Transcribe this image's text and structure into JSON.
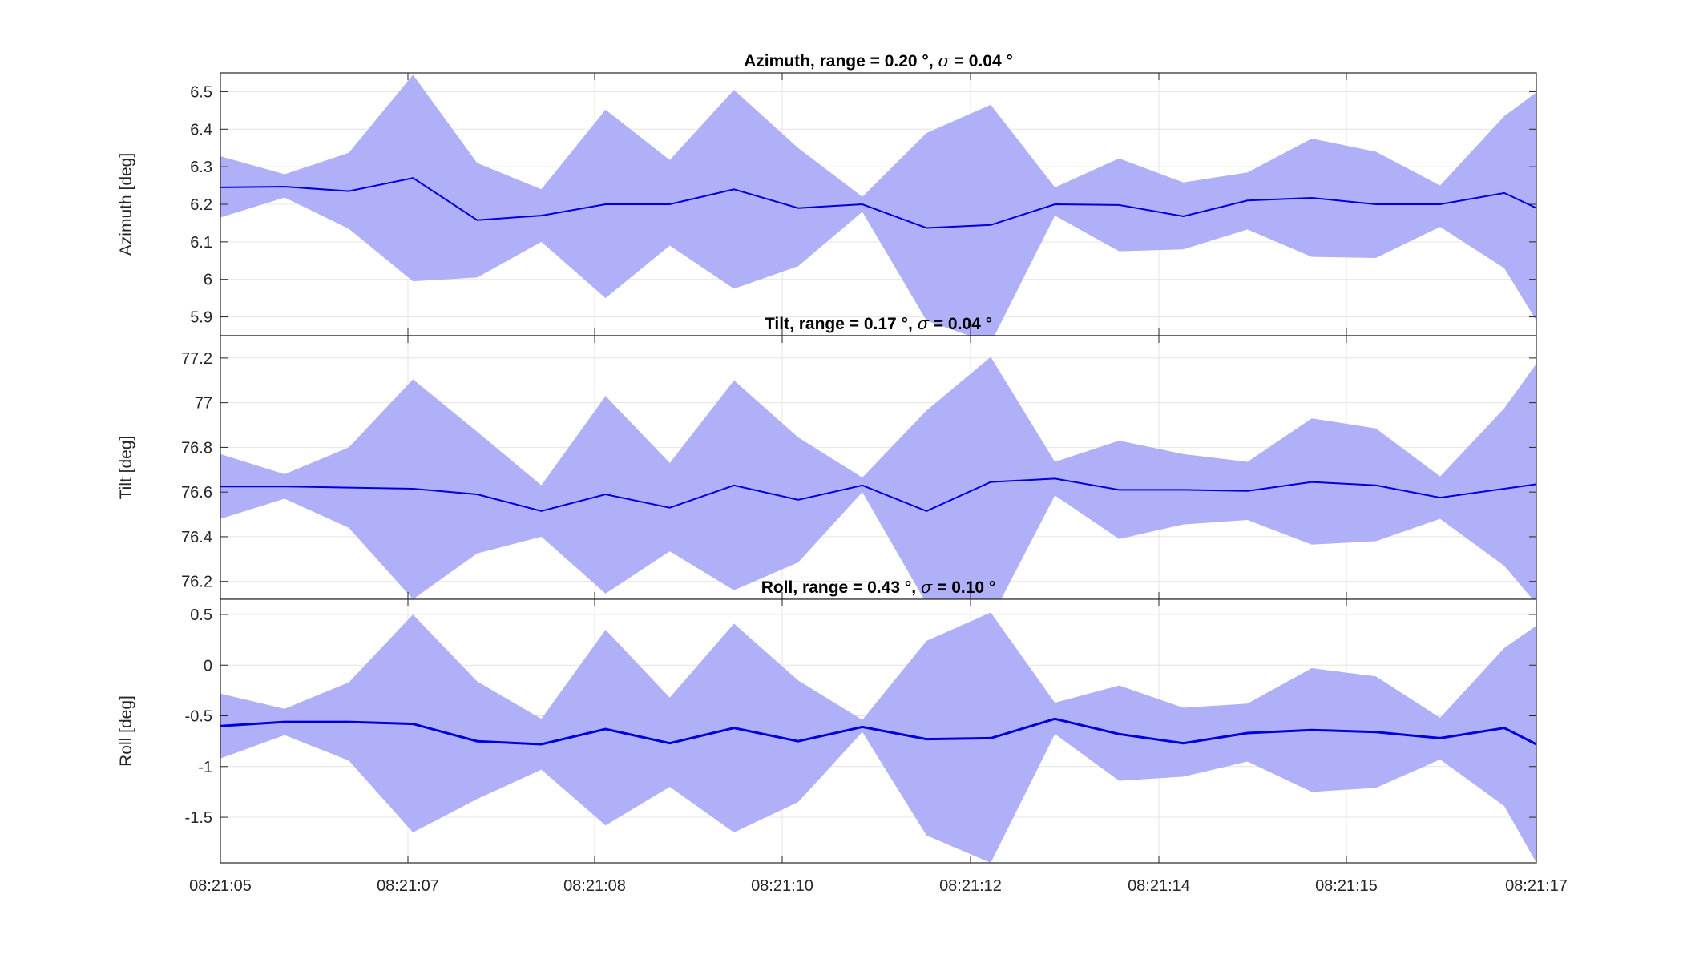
{
  "figure": {
    "background": "#ffffff",
    "band_color": "#b0b0f9",
    "line_color": "#0000dd",
    "grid_color": "#e4e4e4",
    "axes_color": "#262626"
  },
  "x_axis": {
    "type": "time",
    "range": [
      "08:21:05.0",
      "08:21:17.3"
    ],
    "tick_labels": [
      "08:21:05",
      "08:21:07",
      "08:21:08",
      "08:21:10",
      "08:21:12",
      "08:21:14",
      "08:21:15",
      "08:21:17"
    ]
  },
  "chart_data": [
    {
      "type": "area",
      "title_prefix": "Azimuth, range = 0.20 °, ",
      "title_sigma": "σ",
      "title_suffix": " = 0.04 °",
      "ylabel": "Azimuth [deg]",
      "ylim": [
        5.85,
        6.55
      ],
      "yticks": [
        5.9,
        6.0,
        6.1,
        6.2,
        6.3,
        6.4,
        6.5
      ],
      "ytick_labels": [
        "5.9",
        "6",
        "6.1",
        "6.2",
        "6.3",
        "6.4",
        "6.5"
      ],
      "grid": true,
      "x": [
        "08:21:05.0",
        "08:21:05.6",
        "08:21:06.2",
        "08:21:06.8",
        "08:21:07.4",
        "08:21:08.0",
        "08:21:08.6",
        "08:21:09.2",
        "08:21:09.8",
        "08:21:10.4",
        "08:21:11.0",
        "08:21:11.6",
        "08:21:12.2",
        "08:21:12.8",
        "08:21:13.4",
        "08:21:14.0",
        "08:21:14.6",
        "08:21:15.2",
        "08:21:15.8",
        "08:21:16.4",
        "08:21:17.0",
        "08:21:17.3"
      ],
      "series": [
        {
          "role": "mean",
          "values": [
            6.245,
            6.247,
            6.235,
            6.27,
            6.158,
            6.17,
            6.2,
            6.2,
            6.24,
            6.19,
            6.2,
            6.137,
            6.145,
            6.2,
            6.198,
            6.168,
            6.21,
            6.217,
            6.2,
            6.2,
            6.23,
            6.19
          ]
        },
        {
          "role": "upper",
          "values": [
            6.328,
            6.28,
            6.337,
            6.545,
            6.31,
            6.24,
            6.452,
            6.318,
            6.505,
            6.35,
            6.22,
            6.39,
            6.465,
            6.245,
            6.322,
            6.258,
            6.285,
            6.375,
            6.34,
            6.25,
            6.435,
            6.498
          ]
        },
        {
          "role": "lower",
          "values": [
            6.165,
            6.218,
            6.135,
            5.995,
            6.005,
            6.1,
            5.95,
            6.09,
            5.975,
            6.035,
            6.18,
            5.89,
            5.83,
            6.17,
            6.075,
            6.08,
            6.133,
            6.06,
            6.057,
            6.14,
            6.03,
            5.89
          ]
        }
      ]
    },
    {
      "type": "area",
      "title_prefix": "Tilt, range = 0.17 °, ",
      "title_sigma": "σ",
      "title_suffix": " = 0.04 °",
      "ylabel": "Tilt [deg]",
      "ylim": [
        76.12,
        77.3
      ],
      "yticks": [
        76.2,
        76.4,
        76.6,
        76.8,
        77.0,
        77.2
      ],
      "ytick_labels": [
        "76.2",
        "76.4",
        "76.6",
        "76.8",
        "77",
        "77.2"
      ],
      "grid": true,
      "x": [
        "08:21:05.0",
        "08:21:05.6",
        "08:21:06.2",
        "08:21:06.8",
        "08:21:07.4",
        "08:21:08.0",
        "08:21:08.6",
        "08:21:09.2",
        "08:21:09.8",
        "08:21:10.4",
        "08:21:11.0",
        "08:21:11.6",
        "08:21:12.2",
        "08:21:12.8",
        "08:21:13.4",
        "08:21:14.0",
        "08:21:14.6",
        "08:21:15.2",
        "08:21:15.8",
        "08:21:16.4",
        "08:21:17.0",
        "08:21:17.3"
      ],
      "series": [
        {
          "role": "mean",
          "values": [
            76.625,
            76.625,
            76.62,
            76.615,
            76.59,
            76.515,
            76.59,
            76.53,
            76.63,
            76.565,
            76.63,
            76.515,
            76.645,
            76.66,
            76.61,
            76.61,
            76.605,
            76.645,
            76.63,
            76.575,
            76.615,
            76.635
          ]
        },
        {
          "role": "upper",
          "values": [
            76.77,
            76.68,
            76.8,
            77.105,
            76.87,
            76.63,
            77.03,
            76.73,
            77.1,
            76.845,
            76.665,
            76.965,
            77.205,
            76.735,
            76.83,
            76.77,
            76.735,
            76.93,
            76.885,
            76.67,
            76.975,
            77.175
          ]
        },
        {
          "role": "lower",
          "values": [
            76.48,
            76.57,
            76.44,
            76.12,
            76.325,
            76.4,
            76.145,
            76.335,
            76.16,
            76.285,
            76.6,
            76.1,
            76.03,
            76.585,
            76.39,
            76.455,
            76.475,
            76.365,
            76.38,
            76.48,
            76.27,
            76.1
          ]
        }
      ]
    },
    {
      "type": "area",
      "title_prefix": "Roll, range = 0.43 °, ",
      "title_sigma": "σ",
      "title_suffix": " = 0.10 °",
      "ylabel": "Roll [deg]",
      "ylim": [
        -1.95,
        0.65
      ],
      "yticks": [
        -1.5,
        -1.0,
        -0.5,
        0.0,
        0.5
      ],
      "ytick_labels": [
        "-1.5",
        "-1",
        "-0.5",
        "0",
        "0.5"
      ],
      "grid": true,
      "x": [
        "08:21:05.0",
        "08:21:05.6",
        "08:21:06.2",
        "08:21:06.8",
        "08:21:07.4",
        "08:21:08.0",
        "08:21:08.6",
        "08:21:09.2",
        "08:21:09.8",
        "08:21:10.4",
        "08:21:11.0",
        "08:21:11.6",
        "08:21:12.2",
        "08:21:12.8",
        "08:21:13.4",
        "08:21:14.0",
        "08:21:14.6",
        "08:21:15.2",
        "08:21:15.8",
        "08:21:16.4",
        "08:21:17.0",
        "08:21:17.3"
      ],
      "series": [
        {
          "role": "mean",
          "values": [
            -0.6,
            -0.56,
            -0.56,
            -0.58,
            -0.75,
            -0.78,
            -0.63,
            -0.77,
            -0.62,
            -0.75,
            -0.61,
            -0.73,
            -0.72,
            -0.53,
            -0.68,
            -0.77,
            -0.67,
            -0.64,
            -0.66,
            -0.72,
            -0.62,
            -0.78
          ]
        },
        {
          "role": "upper",
          "values": [
            -0.28,
            -0.43,
            -0.17,
            0.5,
            -0.16,
            -0.53,
            0.35,
            -0.32,
            0.41,
            -0.15,
            -0.54,
            0.24,
            0.52,
            -0.37,
            -0.2,
            -0.42,
            -0.38,
            -0.03,
            -0.11,
            -0.52,
            0.17,
            0.39
          ]
        },
        {
          "role": "lower",
          "values": [
            -0.92,
            -0.69,
            -0.94,
            -1.65,
            -1.32,
            -1.03,
            -1.58,
            -1.2,
            -1.65,
            -1.35,
            -0.66,
            -1.68,
            -1.95,
            -0.68,
            -1.14,
            -1.1,
            -0.95,
            -1.25,
            -1.21,
            -0.93,
            -1.39,
            -1.95
          ]
        }
      ]
    }
  ]
}
